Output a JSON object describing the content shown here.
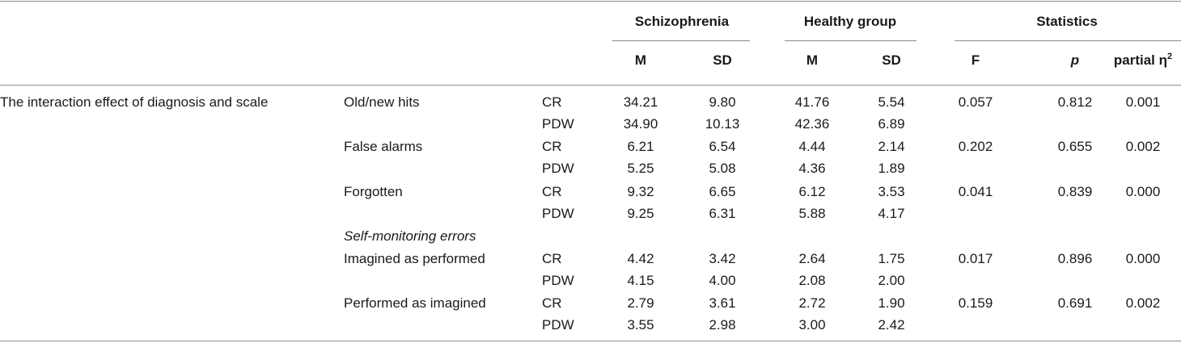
{
  "header": {
    "groups": {
      "schizophrenia": "Schizophrenia",
      "healthy": "Healthy group",
      "statistics": "Statistics"
    },
    "columns": {
      "m1": "M",
      "sd1": "SD",
      "m2": "M",
      "sd2": "SD",
      "f": "F",
      "p": "p",
      "eta": "partial η",
      "eta_sup": "2"
    }
  },
  "effect_label": "The interaction effect of diagnosis and scale",
  "subheading": "Self-monitoring errors",
  "rows": [
    {
      "measure": "Old/new hits",
      "scale": "CR",
      "sz_m": "34.21",
      "sz_sd": "9.80",
      "hc_m": "41.76",
      "hc_sd": "5.54",
      "f": "0.057",
      "p": "0.812",
      "eta": "0.001"
    },
    {
      "measure": "",
      "scale": "PDW",
      "sz_m": "34.90",
      "sz_sd": "10.13",
      "hc_m": "42.36",
      "hc_sd": "6.89",
      "f": "",
      "p": "",
      "eta": ""
    },
    {
      "measure": "False alarms",
      "scale": "CR",
      "sz_m": "6.21",
      "sz_sd": "6.54",
      "hc_m": "4.44",
      "hc_sd": "2.14",
      "f": "0.202",
      "p": "0.655",
      "eta": "0.002"
    },
    {
      "measure": "",
      "scale": "PDW",
      "sz_m": "5.25",
      "sz_sd": "5.08",
      "hc_m": "4.36",
      "hc_sd": "1.89",
      "f": "",
      "p": "",
      "eta": ""
    },
    {
      "measure": "Forgotten",
      "scale": "CR",
      "sz_m": "9.32",
      "sz_sd": "6.65",
      "hc_m": "6.12",
      "hc_sd": "3.53",
      "f": "0.041",
      "p": "0.839",
      "eta": "0.000"
    },
    {
      "measure": "",
      "scale": "PDW",
      "sz_m": "9.25",
      "sz_sd": "6.31",
      "hc_m": "5.88",
      "hc_sd": "4.17",
      "f": "",
      "p": "",
      "eta": ""
    },
    {
      "measure": "Imagined as performed",
      "scale": "CR",
      "sz_m": "4.42",
      "sz_sd": "3.42",
      "hc_m": "2.64",
      "hc_sd": "1.75",
      "f": "0.017",
      "p": "0.896",
      "eta": "0.000"
    },
    {
      "measure": "",
      "scale": "PDW",
      "sz_m": "4.15",
      "sz_sd": "4.00",
      "hc_m": "2.08",
      "hc_sd": "2.00",
      "f": "",
      "p": "",
      "eta": ""
    },
    {
      "measure": "Performed as imagined",
      "scale": "CR",
      "sz_m": "2.79",
      "sz_sd": "3.61",
      "hc_m": "2.72",
      "hc_sd": "1.90",
      "f": "0.159",
      "p": "0.691",
      "eta": "0.002"
    },
    {
      "measure": "",
      "scale": "PDW",
      "sz_m": "3.55",
      "sz_sd": "2.98",
      "hc_m": "3.00",
      "hc_sd": "2.42",
      "f": "",
      "p": "",
      "eta": ""
    }
  ]
}
